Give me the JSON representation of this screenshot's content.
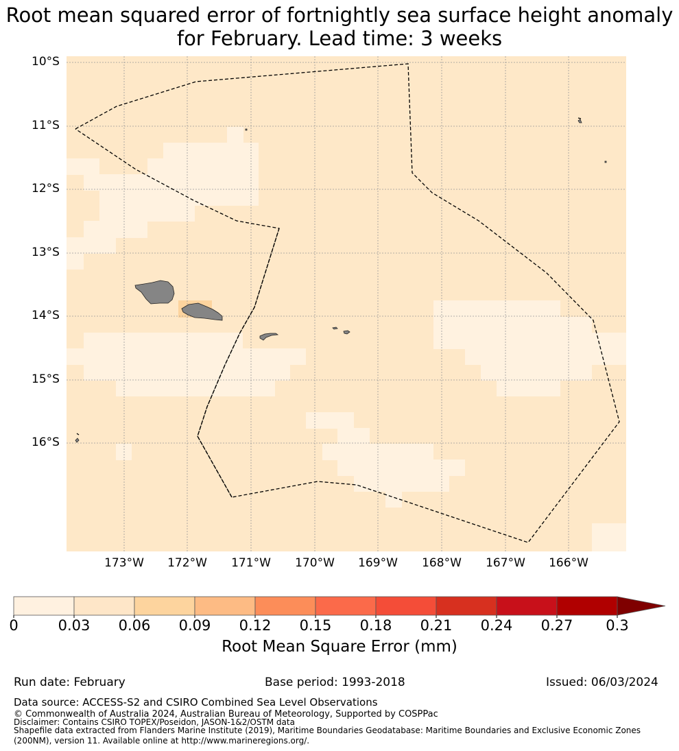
{
  "title": {
    "line1": "Root mean squared error of fortnightly sea surface height anomaly",
    "line2": "for February. Lead time: 3 weeks"
  },
  "map": {
    "lat_labels": [
      "10°S",
      "11°S",
      "12°S",
      "13°S",
      "14°S",
      "15°S",
      "16°S"
    ],
    "lon_labels": [
      "173°W",
      "172°W",
      "171°W",
      "170°W",
      "169°W",
      "168°W",
      "167°W",
      "166°W"
    ],
    "colors": {
      "background_class": "#fee8c8",
      "light_class": "#fff2e0",
      "land": "#858585",
      "boundary": "#000000"
    }
  },
  "colorbar": {
    "ticks": [
      "0",
      "0.03",
      "0.06",
      "0.09",
      "0.12",
      "0.15",
      "0.18",
      "0.21",
      "0.24",
      "0.27",
      "0.3"
    ],
    "colors": [
      "#fff1e0",
      "#fee6c8",
      "#fdd49e",
      "#fdbb84",
      "#fc8d59",
      "#fb6a4a",
      "#f44d38",
      "#d7301f",
      "#c8101a",
      "#b00000",
      "#7f0000"
    ],
    "label": "Root Mean Square Error (mm)"
  },
  "meta": {
    "run_date": "Run date: February",
    "base_period": "Base period: 1993-2018",
    "issued": "Issued: 06/03/2024"
  },
  "footer": {
    "data_source": "Data source: ACCESS-S2 and CSIRO Combined Sea Level Observations",
    "copyright": "© Commonwealth of Australia 2024, Australian Bureau of Meteorology, Supported by COSPPac",
    "disclaimer": "Disclaimer: Contains CSIRO TOPEX/Poseidon, JASON-1&2/OSTM data",
    "shapefile_line1": "Shapefile data extracted from Flanders Marine Institute (2019), Maritime Boundaries Geodatabase: Maritime Boundaries and Exclusive Economic Zones",
    "shapefile_line2": "(200NM), version 11. Available online at http://www.marineregions.org/."
  }
}
